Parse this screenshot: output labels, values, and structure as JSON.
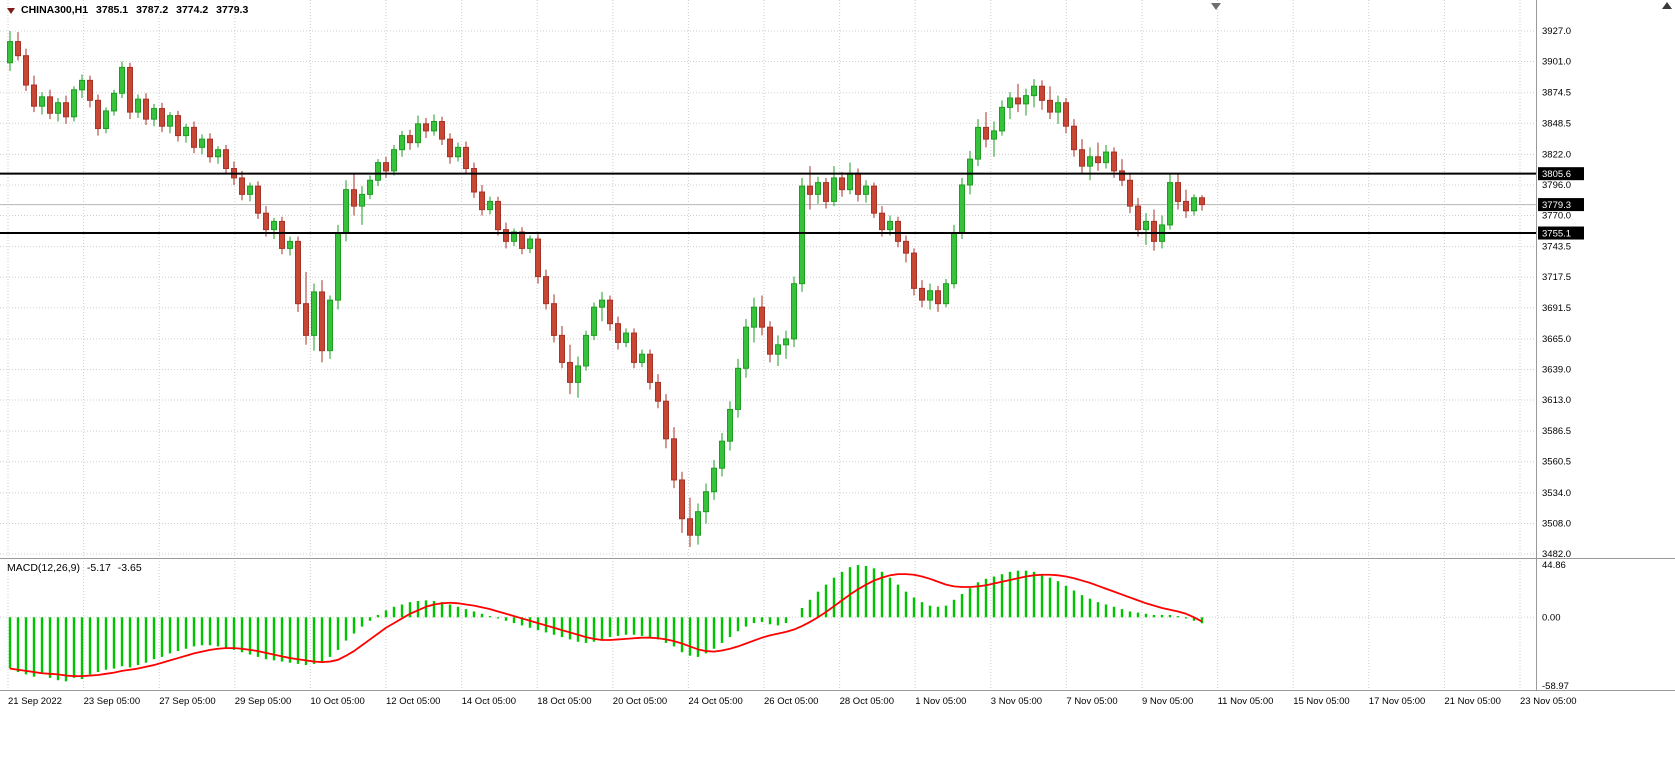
{
  "legend": {
    "symbol": "CHINA300,H1",
    "open": "3785.1",
    "high": "3787.2",
    "low": "3774.2",
    "close": "3779.3"
  },
  "price_axis": {
    "ticks": [
      "3927.0",
      "3901.0",
      "3874.5",
      "3848.5",
      "3822.0",
      "3796.0",
      "3770.0",
      "3743.5",
      "3717.5",
      "3691.5",
      "3665.0",
      "3639.0",
      "3613.0",
      "3586.5",
      "3560.5",
      "3534.0",
      "3508.0",
      "3482.0"
    ],
    "tags": [
      {
        "text": "3805.6",
        "value": 3805.6,
        "kind": "level-line"
      },
      {
        "text": "3779.3",
        "value": 3779.3,
        "kind": "current-price"
      },
      {
        "text": "3755.1",
        "value": 3755.1,
        "kind": "level-line"
      }
    ]
  },
  "time_axis": {
    "labels": [
      "21 Sep 2022",
      "23 Sep 05:00",
      "27 Sep 05:00",
      "29 Sep 05:00",
      "10 Oct 05:00",
      "12 Oct 05:00",
      "14 Oct 05:00",
      "18 Oct 05:00",
      "20 Oct 05:00",
      "24 Oct 05:00",
      "26 Oct 05:00",
      "28 Oct 05:00",
      "1 Nov 05:00",
      "3 Nov 05:00",
      "7 Nov 05:00",
      "9 Nov 05:00",
      "11 Nov 05:00",
      "15 Nov 05:00",
      "17 Nov 05:00",
      "21 Nov 05:00",
      "23 Nov 05:00"
    ]
  },
  "macd_panel": {
    "name": "MACD(12,26,9)",
    "value_main": "-5.17",
    "value_signal": "-3.65",
    "scale_labels": [
      "44.86",
      "0.00",
      "-58.97"
    ]
  },
  "colors": {
    "bull": "#1f9d23",
    "bull_fill": "#36c23a",
    "bear": "#a93226",
    "bear_fill": "#c74634",
    "macd_bar": "#00c400",
    "macd_signal": "#ff0000",
    "grid": "#cfcfcf",
    "hline": "#000000",
    "current_line": "#b5b5b5",
    "tag_bg": "#000000",
    "tag_fg": "#ffffff",
    "axis_text": "#000000",
    "separator": "#9a9a9a"
  },
  "chart_data": [
    {
      "type": "candlestick",
      "symbol": "CHINA300",
      "timeframe": "H1",
      "y_range": [
        3482,
        3927
      ],
      "levels": [
        3805.6,
        3755.1
      ],
      "last_price": 3779.3,
      "last_bar_ohlc": [
        3785.1,
        3787.2,
        3774.2,
        3779.3
      ],
      "ohlc": [
        [
          3900,
          3927,
          3893,
          3918
        ],
        [
          3918,
          3926,
          3902,
          3906
        ],
        [
          3906,
          3912,
          3876,
          3881
        ],
        [
          3881,
          3889,
          3858,
          3863
        ],
        [
          3863,
          3875,
          3856,
          3871
        ],
        [
          3871,
          3877,
          3852,
          3857
        ],
        [
          3857,
          3870,
          3850,
          3866
        ],
        [
          3866,
          3872,
          3848,
          3854
        ],
        [
          3854,
          3880,
          3850,
          3877
        ],
        [
          3877,
          3890,
          3870,
          3885
        ],
        [
          3885,
          3889,
          3862,
          3868
        ],
        [
          3868,
          3873,
          3838,
          3844
        ],
        [
          3844,
          3862,
          3840,
          3859
        ],
        [
          3859,
          3877,
          3855,
          3874
        ],
        [
          3874,
          3901,
          3870,
          3896
        ],
        [
          3896,
          3900,
          3852,
          3858
        ],
        [
          3858,
          3873,
          3853,
          3869
        ],
        [
          3869,
          3874,
          3847,
          3852
        ],
        [
          3852,
          3865,
          3846,
          3861
        ],
        [
          3861,
          3866,
          3841,
          3846
        ],
        [
          3846,
          3858,
          3840,
          3855
        ],
        [
          3855,
          3859,
          3833,
          3838
        ],
        [
          3838,
          3848,
          3832,
          3845
        ],
        [
          3845,
          3850,
          3823,
          3828
        ],
        [
          3828,
          3839,
          3822,
          3835
        ],
        [
          3835,
          3840,
          3815,
          3820
        ],
        [
          3820,
          3829,
          3814,
          3826
        ],
        [
          3826,
          3830,
          3806,
          3810
        ],
        [
          3810,
          3816,
          3796,
          3802
        ],
        [
          3802,
          3808,
          3783,
          3788
        ],
        [
          3788,
          3798,
          3782,
          3795
        ],
        [
          3795,
          3799,
          3767,
          3772
        ],
        [
          3772,
          3778,
          3752,
          3758
        ],
        [
          3758,
          3768,
          3750,
          3765
        ],
        [
          3765,
          3769,
          3737,
          3742
        ],
        [
          3742,
          3752,
          3736,
          3748
        ],
        [
          3748,
          3752,
          3688,
          3695
        ],
        [
          3695,
          3722,
          3660,
          3668
        ],
        [
          3668,
          3712,
          3655,
          3705
        ],
        [
          3705,
          3715,
          3645,
          3655
        ],
        [
          3655,
          3702,
          3648,
          3698
        ],
        [
          3698,
          3762,
          3690,
          3755
        ],
        [
          3755,
          3800,
          3748,
          3792
        ],
        [
          3792,
          3805,
          3770,
          3778
        ],
        [
          3778,
          3795,
          3762,
          3788
        ],
        [
          3788,
          3804,
          3784,
          3800
        ],
        [
          3800,
          3818,
          3795,
          3815
        ],
        [
          3815,
          3820,
          3802,
          3808
        ],
        [
          3808,
          3830,
          3804,
          3826
        ],
        [
          3826,
          3842,
          3820,
          3838
        ],
        [
          3838,
          3843,
          3826,
          3832
        ],
        [
          3832,
          3855,
          3828,
          3848
        ],
        [
          3848,
          3853,
          3836,
          3842
        ],
        [
          3842,
          3856,
          3838,
          3850
        ],
        [
          3850,
          3854,
          3830,
          3835
        ],
        [
          3835,
          3840,
          3814,
          3820
        ],
        [
          3820,
          3832,
          3816,
          3828
        ],
        [
          3828,
          3833,
          3805,
          3810
        ],
        [
          3810,
          3815,
          3785,
          3790
        ],
        [
          3790,
          3796,
          3770,
          3775
        ],
        [
          3775,
          3786,
          3771,
          3782
        ],
        [
          3782,
          3786,
          3753,
          3758
        ],
        [
          3758,
          3764,
          3742,
          3748
        ],
        [
          3748,
          3759,
          3744,
          3756
        ],
        [
          3756,
          3760,
          3737,
          3742
        ],
        [
          3742,
          3753,
          3738,
          3750
        ],
        [
          3750,
          3754,
          3712,
          3718
        ],
        [
          3718,
          3724,
          3690,
          3695
        ],
        [
          3695,
          3703,
          3662,
          3668
        ],
        [
          3668,
          3676,
          3640,
          3645
        ],
        [
          3645,
          3660,
          3618,
          3628
        ],
        [
          3628,
          3650,
          3615,
          3642
        ],
        [
          3642,
          3672,
          3638,
          3668
        ],
        [
          3668,
          3696,
          3664,
          3692
        ],
        [
          3692,
          3705,
          3680,
          3698
        ],
        [
          3698,
          3702,
          3672,
          3678
        ],
        [
          3678,
          3684,
          3656,
          3662
        ],
        [
          3662,
          3674,
          3658,
          3670
        ],
        [
          3670,
          3674,
          3640,
          3645
        ],
        [
          3645,
          3656,
          3641,
          3652
        ],
        [
          3652,
          3656,
          3622,
          3628
        ],
        [
          3628,
          3635,
          3606,
          3612
        ],
        [
          3612,
          3618,
          3572,
          3580
        ],
        [
          3580,
          3590,
          3538,
          3545
        ],
        [
          3545,
          3552,
          3500,
          3512
        ],
        [
          3512,
          3530,
          3488,
          3498
        ],
        [
          3498,
          3525,
          3490,
          3518
        ],
        [
          3518,
          3542,
          3508,
          3535
        ],
        [
          3535,
          3562,
          3528,
          3555
        ],
        [
          3555,
          3585,
          3548,
          3578
        ],
        [
          3578,
          3612,
          3570,
          3605
        ],
        [
          3605,
          3648,
          3598,
          3640
        ],
        [
          3640,
          3682,
          3632,
          3675
        ],
        [
          3675,
          3700,
          3662,
          3692
        ],
        [
          3692,
          3702,
          3668,
          3675
        ],
        [
          3675,
          3680,
          3645,
          3652
        ],
        [
          3652,
          3668,
          3642,
          3660
        ],
        [
          3660,
          3672,
          3648,
          3665
        ],
        [
          3665,
          3718,
          3658,
          3712
        ],
        [
          3712,
          3802,
          3705,
          3795
        ],
        [
          3795,
          3812,
          3775,
          3788
        ],
        [
          3788,
          3803,
          3780,
          3798
        ],
        [
          3798,
          3802,
          3776,
          3782
        ],
        [
          3782,
          3812,
          3778,
          3802
        ],
        [
          3802,
          3807,
          3786,
          3792
        ],
        [
          3792,
          3815,
          3788,
          3806
        ],
        [
          3806,
          3810,
          3782,
          3788
        ],
        [
          3788,
          3800,
          3781,
          3795
        ],
        [
          3795,
          3798,
          3768,
          3772
        ],
        [
          3772,
          3778,
          3752,
          3758
        ],
        [
          3758,
          3770,
          3753,
          3765
        ],
        [
          3765,
          3769,
          3743,
          3748
        ],
        [
          3748,
          3753,
          3730,
          3738
        ],
        [
          3738,
          3742,
          3702,
          3708
        ],
        [
          3708,
          3715,
          3692,
          3698
        ],
        [
          3698,
          3712,
          3690,
          3706
        ],
        [
          3706,
          3710,
          3688,
          3695
        ],
        [
          3695,
          3716,
          3692,
          3712
        ],
        [
          3712,
          3762,
          3708,
          3755
        ],
        [
          3755,
          3802,
          3750,
          3796
        ],
        [
          3796,
          3825,
          3788,
          3818
        ],
        [
          3818,
          3852,
          3812,
          3845
        ],
        [
          3845,
          3858,
          3828,
          3835
        ],
        [
          3835,
          3850,
          3820,
          3842
        ],
        [
          3842,
          3868,
          3838,
          3862
        ],
        [
          3862,
          3875,
          3852,
          3870
        ],
        [
          3870,
          3882,
          3858,
          3865
        ],
        [
          3865,
          3878,
          3855,
          3872
        ],
        [
          3872,
          3886,
          3862,
          3880
        ],
        [
          3880,
          3885,
          3860,
          3868
        ],
        [
          3868,
          3880,
          3852,
          3858
        ],
        [
          3858,
          3872,
          3848,
          3866
        ],
        [
          3866,
          3870,
          3840,
          3846
        ],
        [
          3846,
          3852,
          3820,
          3826
        ],
        [
          3826,
          3835,
          3805,
          3812
        ],
        [
          3812,
          3828,
          3800,
          3820
        ],
        [
          3820,
          3832,
          3808,
          3815
        ],
        [
          3815,
          3830,
          3810,
          3824
        ],
        [
          3824,
          3828,
          3802,
          3808
        ],
        [
          3808,
          3818,
          3795,
          3800
        ],
        [
          3800,
          3805,
          3772,
          3778
        ],
        [
          3778,
          3785,
          3752,
          3758
        ],
        [
          3758,
          3772,
          3745,
          3765
        ],
        [
          3765,
          3775,
          3740,
          3748
        ],
        [
          3748,
          3770,
          3742,
          3762
        ],
        [
          3762,
          3806,
          3758,
          3798
        ],
        [
          3798,
          3805,
          3775,
          3782
        ],
        [
          3782,
          3792,
          3768,
          3774
        ],
        [
          3774,
          3788,
          3770,
          3785.1
        ],
        [
          3785.1,
          3787.2,
          3774.2,
          3779.3
        ]
      ]
    },
    {
      "type": "macd",
      "name": "MACD(12,26,9)",
      "y_range": [
        -58.97,
        44.86
      ],
      "current": [
        -5.17,
        -3.65
      ],
      "histogram": [
        -44,
        -47,
        -49,
        -51,
        -48,
        -52,
        -54,
        -55,
        -52,
        -53,
        -49,
        -47,
        -45,
        -44,
        -42,
        -43,
        -41,
        -39,
        -36,
        -34,
        -31,
        -29,
        -27,
        -25,
        -24,
        -24,
        -25,
        -27,
        -28,
        -30,
        -32,
        -34,
        -36,
        -37,
        -38,
        -39,
        -40,
        -41,
        -40,
        -38,
        -34,
        -28,
        -20,
        -14,
        -8,
        -3,
        2,
        6,
        9,
        11,
        13,
        14,
        14.5,
        14,
        13,
        11,
        9,
        7,
        5,
        3,
        1,
        -1,
        -3,
        -5,
        -7,
        -9,
        -11,
        -13,
        -15,
        -17,
        -19,
        -21,
        -22,
        -21,
        -19,
        -17,
        -16,
        -15,
        -15,
        -16,
        -17,
        -19,
        -22,
        -25,
        -30,
        -33,
        -34,
        -31,
        -27,
        -22,
        -17,
        -12,
        -8,
        -5,
        -4,
        -6,
        -7,
        -5,
        0,
        8,
        15,
        22,
        28,
        34,
        39,
        43,
        44.8,
        44,
        42,
        39,
        34,
        28,
        22,
        17,
        13,
        10,
        9,
        10,
        15,
        20,
        25,
        30,
        33,
        35,
        37,
        39,
        40,
        40,
        39,
        37,
        34,
        31,
        27,
        23,
        19,
        16,
        13,
        11,
        9,
        7,
        5,
        4,
        3,
        2,
        2,
        2,
        1,
        -1,
        -3,
        -5.17
      ],
      "signal": [
        -44,
        -45,
        -46,
        -47,
        -48,
        -48.5,
        -49,
        -50,
        -50.5,
        -50.5,
        -50,
        -49.5,
        -48.5,
        -47.5,
        -46,
        -45,
        -44,
        -42.5,
        -41,
        -39,
        -37,
        -35,
        -33,
        -31,
        -29.5,
        -28,
        -27,
        -26.5,
        -26.5,
        -27,
        -28,
        -29,
        -30.5,
        -32,
        -33.5,
        -35,
        -36,
        -37,
        -38,
        -38.5,
        -38,
        -36.5,
        -33,
        -29,
        -24,
        -19,
        -14,
        -9,
        -5,
        -1,
        3,
        6,
        9,
        11,
        12,
        12.5,
        12,
        11,
        10,
        8.5,
        7,
        5,
        3,
        1,
        -1,
        -3,
        -5,
        -7,
        -9,
        -11,
        -13,
        -15,
        -17,
        -18.5,
        -19.5,
        -19.5,
        -19,
        -18.5,
        -18,
        -17.5,
        -17.5,
        -18,
        -19,
        -20.5,
        -22.5,
        -25,
        -27.5,
        -29,
        -29.5,
        -28.5,
        -27,
        -25,
        -22.5,
        -20,
        -17.5,
        -15.5,
        -14,
        -12.5,
        -10.5,
        -7.5,
        -4,
        0,
        4.5,
        9.5,
        14.5,
        19.5,
        24,
        28,
        31.5,
        34,
        36,
        37,
        37,
        36.5,
        35,
        33,
        30.5,
        28,
        26.5,
        26,
        26,
        26.5,
        27.5,
        29,
        30.5,
        32,
        33.5,
        35,
        36,
        36.5,
        36.5,
        36,
        35,
        33.5,
        31.5,
        29.5,
        27,
        24.5,
        22,
        19.5,
        17,
        14.5,
        12,
        10,
        8,
        6.5,
        5,
        3,
        0,
        -3.65
      ]
    }
  ]
}
